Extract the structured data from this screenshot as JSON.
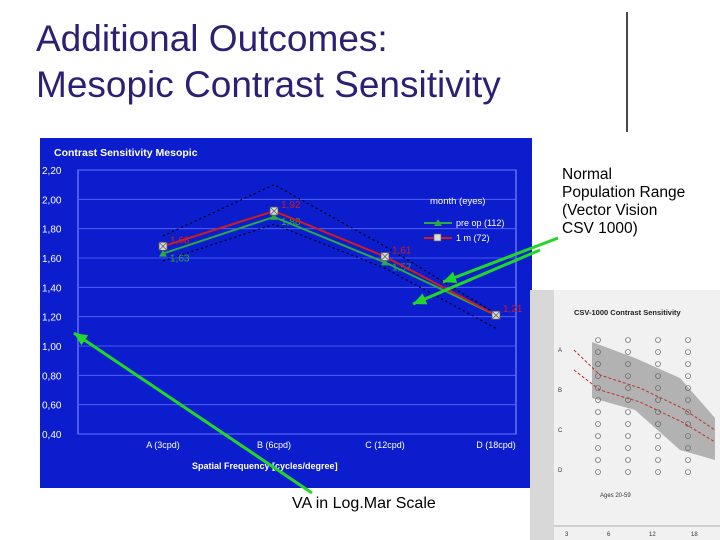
{
  "slide": {
    "title_line1": "Additional Outcomes:",
    "title_line2": "Mesopic Contrast Sensitivity",
    "annotation_normal": [
      "Normal",
      "Population Range",
      "(Vector Vision",
      "CSV 1000)"
    ],
    "annotation_va": "VA in Log.Mar Scale"
  },
  "colors": {
    "title": "#2e1f73",
    "plot_background": "#0b1dcc",
    "pre_op": "#2aa84a",
    "one_month": "#d01c1c",
    "range_band": "#000000",
    "arrow": "#22d62a"
  },
  "chart_data": {
    "type": "line",
    "title": "Contrast Sensitivity Mesopic",
    "xlabel": "Spatial Frequency [cycles/degree]",
    "ylabel": "",
    "categories": [
      "A (3cpd)",
      "B (6cpd)",
      "C (12cpd)",
      "D (18cpd)"
    ],
    "ylim": [
      0.4,
      2.2
    ],
    "yticks": [
      "0,40",
      "0,60",
      "0,80",
      "1,00",
      "1,20",
      "1,40",
      "1,60",
      "1,80",
      "2,00",
      "2,20"
    ],
    "grid": true,
    "legend_title": "month (eyes)",
    "legend_position": "top-right",
    "series": [
      {
        "name": "pre op (112)",
        "marker": "triangle",
        "values": [
          1.63,
          1.88,
          1.57,
          1.21
        ],
        "labels": [
          "1,63",
          "1,88",
          "1,57",
          ""
        ]
      },
      {
        "name": "1 m (72)",
        "marker": "square-x",
        "values": [
          1.68,
          1.92,
          1.61,
          1.21
        ],
        "labels": [
          "1,68",
          "1,92",
          "1,61",
          "1,21"
        ]
      }
    ],
    "normal_range": {
      "upper": [
        1.75,
        2.1,
        1.68,
        1.22
      ],
      "lower": [
        1.58,
        1.83,
        1.53,
        1.12
      ]
    }
  },
  "reference_sheet": {
    "title": "CSV-1000 Contrast Sensitivity",
    "row_labels": [
      "A",
      "B",
      "C",
      "D"
    ],
    "age_legend": "Ages 20-59",
    "x_ticks": [
      "3",
      "6",
      "12",
      "18"
    ]
  }
}
